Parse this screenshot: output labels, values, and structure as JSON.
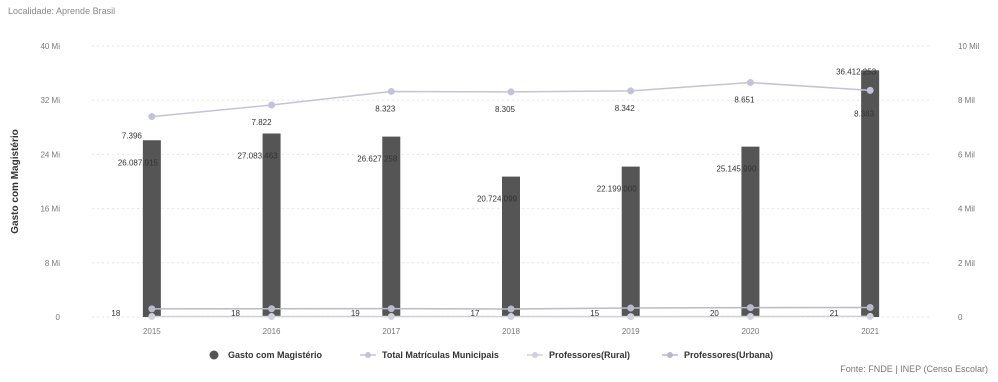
{
  "locality_label": "Localidade: Aprende Brasil",
  "source_label": "Fonte: FNDE | INEP (Censo Escolar)",
  "chart_data": {
    "type": "bar",
    "categories": [
      "2015",
      "2016",
      "2017",
      "2018",
      "2019",
      "2020",
      "2021"
    ],
    "ylabel": "Gasto com Magistério",
    "left_axis": {
      "ylim": [
        0,
        40000000
      ],
      "ticks": [
        "0",
        "8 Mi",
        "16 Mi",
        "24 Mi",
        "32 Mi",
        "40 Mi"
      ]
    },
    "right_axis": {
      "ylim": [
        0,
        10000
      ],
      "ticks": [
        "0",
        "2 Mil",
        "4 Mil",
        "6 Mil",
        "8 Mil",
        "10 Mil"
      ]
    },
    "grid": true,
    "legend_position": "bottom",
    "series": [
      {
        "name": "Gasto com Magistério",
        "kind": "bar",
        "axis": "left",
        "color": "#555555",
        "values": [
          26087915,
          27083463,
          26627258,
          20724099,
          22199000,
          25145990,
          36412253
        ],
        "labels": [
          "26.087.915",
          "27.083.463",
          "26.627.258",
          "20.724.099",
          "22.199.000",
          "25.145.990",
          "36.412.253"
        ]
      },
      {
        "name": "Total Matrículas Municipais",
        "kind": "line",
        "axis": "right",
        "color": "#c3c3d6",
        "values": [
          7396,
          7822,
          8323,
          8305,
          8342,
          8651,
          8363
        ],
        "labels": [
          "7.396",
          "7.822",
          "8.323",
          "8.305",
          "8.342",
          "8.651",
          "8.363"
        ]
      },
      {
        "name": "Professores(Rural)",
        "kind": "line",
        "axis": "right",
        "color": "#d0d0dc",
        "values": [
          18,
          18,
          19,
          17,
          15,
          20,
          21
        ],
        "labels": [
          "18",
          "18",
          "19",
          "17",
          "15",
          "20",
          "21"
        ]
      },
      {
        "name": "Professores(Urbana)",
        "kind": "line",
        "axis": "right",
        "color": "#b9b9cc",
        "values": [
          300,
          305,
          310,
          295,
          330,
          345,
          350
        ],
        "labels": []
      }
    ]
  }
}
